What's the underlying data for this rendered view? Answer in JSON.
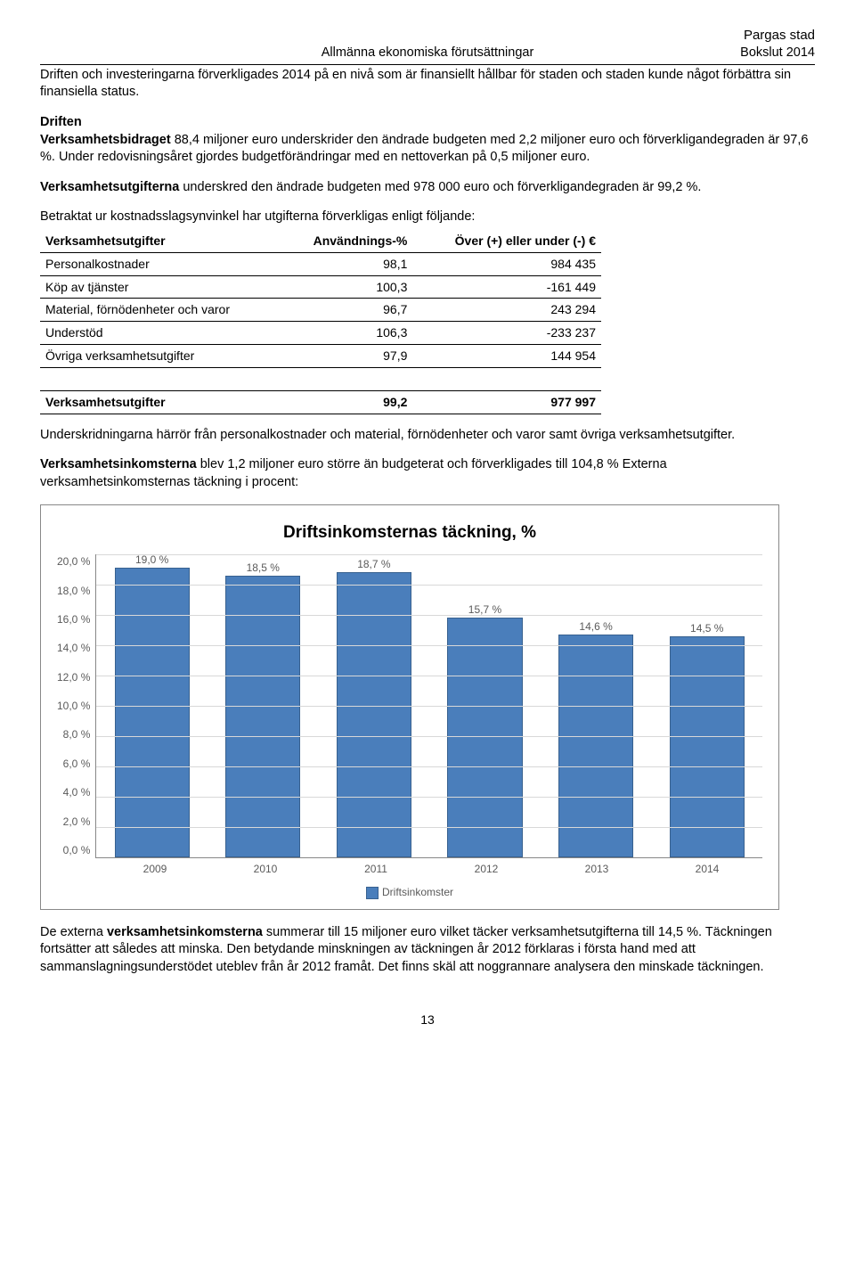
{
  "header": {
    "org": "Pargas stad",
    "section": "Allmänna ekonomiska förutsättningar",
    "report": "Bokslut 2014"
  },
  "para1": "Driften och investeringarna förverkligades 2014 på en nivå som är finansiellt hållbar för staden och staden kunde något förbättra sin finansiella status.",
  "driften_head": "Driften",
  "para2_pre": "Verksamhetsbidraget",
  "para2_rest": " 88,4 miljoner euro underskrider den ändrade budgeten med 2,2 miljoner euro och förverkligandegraden är 97,6 %. Under redovisningsåret gjordes budgetförändringar med en nettoverkan på 0,5 miljoner euro.",
  "para3_pre": "Verksamhetsutgifterna",
  "para3_rest": " underskred den ändrade budgeten med 978 000 euro och förverkligandegraden är 99,2 %.",
  "para4": "Betraktat ur kostnadsslagsynvinkel har utgifterna förverkligas enligt följande:",
  "table": {
    "columns": [
      "Verksamhetsutgifter",
      "Användnings-%",
      "Över (+) eller under (-) €"
    ],
    "rows": [
      [
        "Personalkostnader",
        "98,1",
        "984 435"
      ],
      [
        "Köp av tjänster",
        "100,3",
        "-161 449"
      ],
      [
        "Material, förnödenheter och varor",
        "96,7",
        "243 294"
      ],
      [
        "Understöd",
        "106,3",
        "-233 237"
      ],
      [
        "Övriga verksamhetsutgifter",
        "97,9",
        "144 954"
      ]
    ],
    "total": [
      "Verksamhetsutgifter",
      "99,2",
      "977 997"
    ],
    "col_align": [
      "left",
      "right",
      "right"
    ]
  },
  "para5": "Underskridningarna härrör från personalkostnader och material, förnödenheter och varor samt övriga verksamhetsutgifter.",
  "para6_pre": "Verksamhetsinkomsterna",
  "para6_rest": " blev 1,2 miljoner euro större än budgeterat och förverkligades till 104,8 % Externa verksamhetsinkomsternas täckning i procent:",
  "chart": {
    "type": "bar",
    "title": "Driftsinkomsternas täckning, %",
    "categories": [
      "2009",
      "2010",
      "2011",
      "2012",
      "2013",
      "2014"
    ],
    "values": [
      19.0,
      18.5,
      18.7,
      15.7,
      14.6,
      14.5
    ],
    "value_labels": [
      "19,0 %",
      "18,5 %",
      "18,7 %",
      "15,7 %",
      "14,6 %",
      "14,5 %"
    ],
    "ylim": [
      0,
      20
    ],
    "ytick_step": 2,
    "yticks": [
      "20,0 %",
      "18,0 %",
      "16,0 %",
      "14,0 %",
      "12,0 %",
      "10,0 %",
      "8,0 %",
      "6,0 %",
      "4,0 %",
      "2,0 %",
      "0,0 %"
    ],
    "bar_color": "#4a7ebb",
    "bar_border": "#38618f",
    "grid_color": "#d8d8d8",
    "axis_color": "#888888",
    "background": "#ffffff",
    "legend": "Driftsinkomster",
    "title_fontsize": 19,
    "label_fontsize": 12
  },
  "para7_a": "De externa ",
  "para7_b": "verksamhetsinkomsterna",
  "para7_c": " summerar till 15 miljoner euro vilket täcker verksamhetsutgifterna till 14,5 %. Täckningen fortsätter att således att minska. Den betydande minskningen av täckningen år 2012 förklaras i första hand med att sammanslagningsunderstödet uteblev från år 2012 framåt. Det finns skäl att noggrannare analysera den minskade täckningen.",
  "page_number": "13"
}
